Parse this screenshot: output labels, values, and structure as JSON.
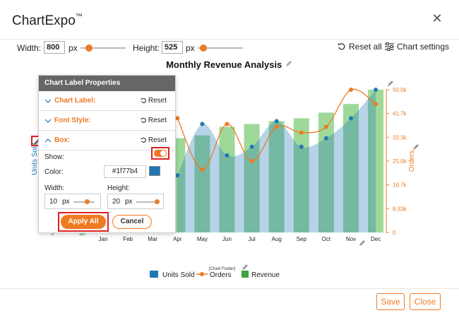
{
  "header": {
    "app_title": "ChartExpo",
    "trademark": "™"
  },
  "toolbar": {
    "width_label": "Width:",
    "width_value": "800",
    "width_unit": "px",
    "height_label": "Height:",
    "height_value": "525",
    "height_unit": "px",
    "reset_all": "Reset all",
    "chart_settings": "Chart settings"
  },
  "chart_data": {
    "type": "bar",
    "title": "Monthly Revenue Analysis",
    "categories": [
      "Jan",
      "Feb",
      "Mar",
      "Apr",
      "May",
      "Jun",
      "Jul",
      "Aug",
      "Sep",
      "Oct",
      "Nov",
      "Dec"
    ],
    "right_axis_label": "Orders",
    "left_axis_label": "Units Sold",
    "right_ticks": [
      "0",
      "8.33k",
      "16.7k",
      "25.0k",
      "33.3k",
      "41.7k",
      "50.0k"
    ],
    "right_ylim": [
      0,
      50000
    ],
    "left_ticks_visible": [
      "0"
    ],
    "revenue_visible_tick": "$0",
    "footer_tag": "[Chart Footer]",
    "series": [
      {
        "name": "Revenue",
        "kind": "bar",
        "color": "#9fd99a",
        "values": [
          null,
          null,
          null,
          33000,
          34000,
          37000,
          38000,
          39000,
          40000,
          42000,
          45000,
          50000
        ]
      },
      {
        "name": "Units Sold",
        "kind": "area",
        "color": "#1f77b4",
        "values": [
          null,
          null,
          null,
          20000,
          38000,
          27000,
          30000,
          39000,
          30000,
          33000,
          40000,
          50000
        ]
      },
      {
        "name": "Orders",
        "kind": "line",
        "color": "#ef7a22",
        "values": [
          null,
          null,
          null,
          40000,
          22000,
          38000,
          25000,
          37000,
          35000,
          37000,
          50000,
          45000
        ]
      }
    ],
    "legend": [
      "Units Sold",
      "Orders",
      "Revenue"
    ],
    "legend_position": "bottom"
  },
  "panel": {
    "title": "Chart Label Properties",
    "sections": [
      {
        "label": "Chart Label:",
        "reset": "Reset"
      },
      {
        "label": "Font Style:",
        "reset": "Reset"
      },
      {
        "label": "Box:",
        "reset": "Reset"
      }
    ],
    "show_label": "Show:",
    "color_label": "Color:",
    "color_value": "#1f77b4",
    "width_label": "Width:",
    "width_value": "10",
    "width_unit": "px",
    "height_label": "Height:",
    "height_value": "20",
    "height_unit": "px",
    "apply_all": "Apply All",
    "cancel": "Cancel"
  },
  "footer": {
    "save": "Save",
    "close": "Close"
  },
  "colors": {
    "accent": "#ef7a22",
    "highlight": "#e02020",
    "bar": "#9fd99a",
    "area": "#1f77b4"
  }
}
